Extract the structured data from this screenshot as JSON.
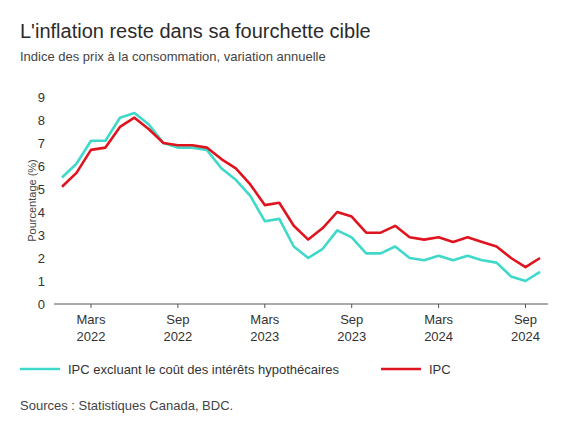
{
  "chart_data": {
    "type": "line",
    "title": "L'inflation reste dans sa fourchette cible",
    "subtitle": "Indice des prix à la consommation, variation annuelle",
    "y_label": "Pourcentage (%)",
    "source": "Sources : Statistiques Canada, BDC.",
    "categories": [
      null,
      null,
      "Mars 2022",
      null,
      null,
      null,
      null,
      null,
      "Sep 2022",
      null,
      null,
      null,
      null,
      null,
      "Mars 2023",
      null,
      null,
      null,
      null,
      null,
      "Sep 2023",
      null,
      null,
      null,
      null,
      null,
      "Mars 2024",
      null,
      null,
      null,
      null,
      null,
      "Sep 2024",
      null
    ],
    "series": [
      {
        "name": "IPC excluant le coût des intérêts hypothécaires",
        "color": "#3fd9c9",
        "values": [
          5.5,
          6.1,
          7.1,
          7.1,
          8.1,
          8.3,
          7.8,
          7.0,
          6.8,
          6.8,
          6.7,
          5.9,
          5.4,
          4.7,
          3.6,
          3.7,
          2.5,
          2.0,
          2.4,
          3.2,
          2.9,
          2.2,
          2.2,
          2.5,
          2.0,
          1.9,
          2.1,
          1.9,
          2.1,
          1.9,
          1.8,
          1.2,
          1.0,
          1.4
        ]
      },
      {
        "name": "IPC",
        "color": "#e0141e",
        "values": [
          5.1,
          5.7,
          6.7,
          6.8,
          7.7,
          8.1,
          7.6,
          7.0,
          6.9,
          6.9,
          6.8,
          6.3,
          5.9,
          5.2,
          4.3,
          4.4,
          3.4,
          2.8,
          3.3,
          4.0,
          3.8,
          3.1,
          3.1,
          3.4,
          2.9,
          2.8,
          2.9,
          2.7,
          2.9,
          2.7,
          2.5,
          2.0,
          1.6,
          2.0
        ]
      }
    ],
    "ylim": [
      0,
      9
    ],
    "yticks": [
      0,
      1,
      2,
      3,
      4,
      5,
      6,
      7,
      8,
      9
    ],
    "grid": false,
    "legend": "bottom"
  }
}
